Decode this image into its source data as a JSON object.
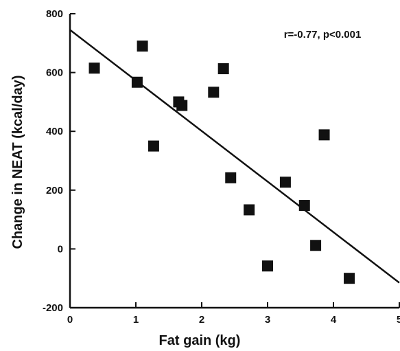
{
  "chart_data": {
    "type": "scatter",
    "xlabel": "Fat gain (kg)",
    "ylabel": "Change in NEAT (kcal/day)",
    "xlim": [
      0,
      5
    ],
    "ylim": [
      -200,
      800
    ],
    "x_ticks": [
      0,
      1,
      2,
      3,
      4,
      5
    ],
    "y_ticks": [
      -200,
      0,
      200,
      400,
      600,
      800
    ],
    "x_tick_labels": [
      "0",
      "1",
      "2",
      "3",
      "4",
      "5"
    ],
    "y_tick_labels": [
      "-200",
      "0",
      "200",
      "400",
      "600",
      "800"
    ],
    "grid": false,
    "marker": "filled-square",
    "marker_color": "#111111",
    "points": [
      {
        "x": 0.37,
        "y": 615
      },
      {
        "x": 1.02,
        "y": 567
      },
      {
        "x": 1.1,
        "y": 690
      },
      {
        "x": 1.27,
        "y": 350
      },
      {
        "x": 1.65,
        "y": 500
      },
      {
        "x": 1.7,
        "y": 488
      },
      {
        "x": 2.18,
        "y": 533
      },
      {
        "x": 2.33,
        "y": 613
      },
      {
        "x": 2.44,
        "y": 242
      },
      {
        "x": 2.72,
        "y": 133
      },
      {
        "x": 3.0,
        "y": -58
      },
      {
        "x": 3.27,
        "y": 227
      },
      {
        "x": 3.56,
        "y": 148
      },
      {
        "x": 3.73,
        "y": 12
      },
      {
        "x": 3.86,
        "y": 388
      },
      {
        "x": 4.24,
        "y": -100
      }
    ],
    "regression_line": {
      "x": [
        0,
        5
      ],
      "y": [
        745,
        -115
      ]
    },
    "annotation": "r=-0.77, p<0.001"
  }
}
